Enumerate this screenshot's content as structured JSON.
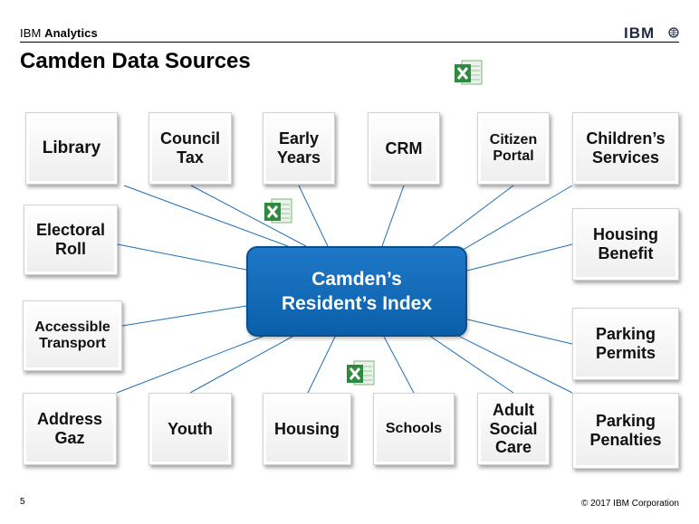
{
  "header": {
    "brand_prefix": "IBM",
    "brand_suffix": "Analytics",
    "logo_text": "IBM"
  },
  "title": "Camden Data Sources",
  "hub": {
    "line1": "Camden’s",
    "line2": "Resident’s Index"
  },
  "sources": [
    {
      "id": "library",
      "label": "Library"
    },
    {
      "id": "council-tax",
      "label": "Council\nTax"
    },
    {
      "id": "early-years",
      "label": "Early\nYears"
    },
    {
      "id": "crm",
      "label": "CRM"
    },
    {
      "id": "citizen-portal",
      "label": "Citizen\nPortal"
    },
    {
      "id": "childrens-services",
      "label": "Children’s\nServices"
    },
    {
      "id": "electoral-roll",
      "label": "Electoral\nRoll"
    },
    {
      "id": "housing-benefit",
      "label": "Housing\nBenefit"
    },
    {
      "id": "accessible-transport",
      "label": "Accessible\nTransport"
    },
    {
      "id": "parking-permits",
      "label": "Parking\nPermits"
    },
    {
      "id": "address-gaz",
      "label": "Address\nGaz"
    },
    {
      "id": "youth",
      "label": "Youth"
    },
    {
      "id": "housing",
      "label": "Housing"
    },
    {
      "id": "schools",
      "label": "Schools"
    },
    {
      "id": "adult-social-care",
      "label": "Adult\nSocial\nCare"
    },
    {
      "id": "parking-penalties",
      "label": "Parking\nPenalties"
    }
  ],
  "icons": [
    "excel-icon",
    "excel-icon",
    "excel-icon"
  ],
  "colors": {
    "hub": "#0b65b5",
    "line": "#1f6fb5"
  },
  "footer": {
    "page_number": "5",
    "copyright": "© 2017 IBM Corporation"
  }
}
